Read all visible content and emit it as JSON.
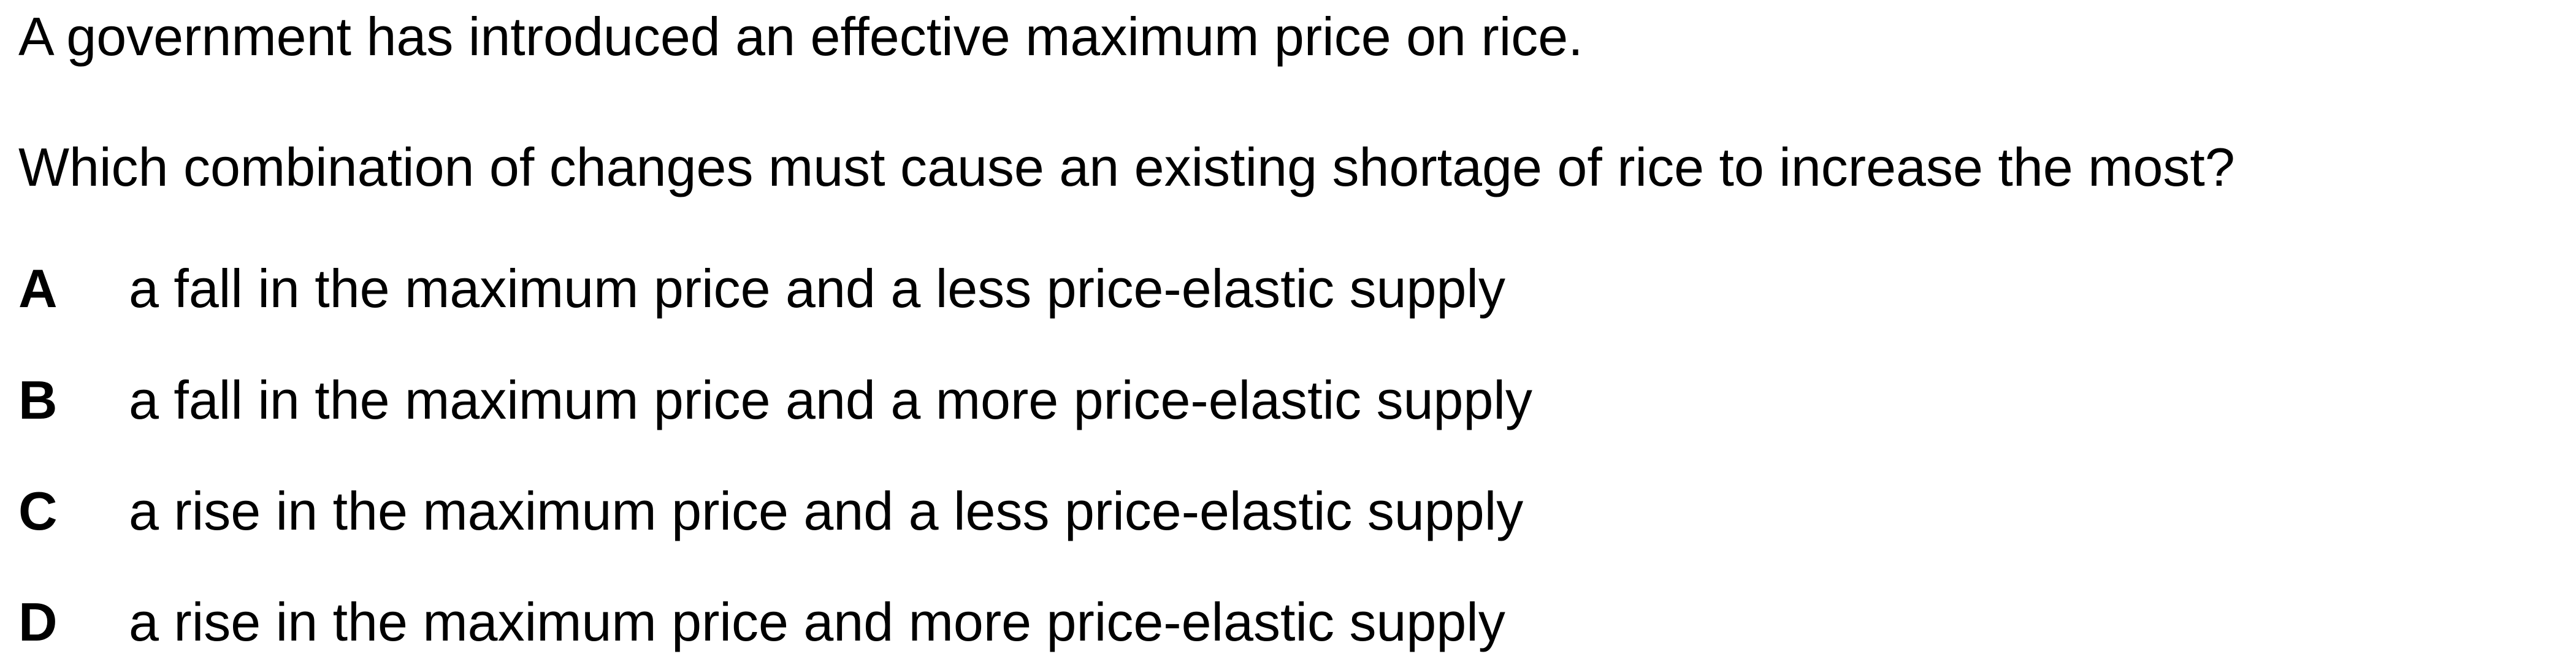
{
  "question": {
    "stem_line_1": "A government has introduced an effective maximum price on rice.",
    "stem_line_2": "Which combination of changes must cause an existing shortage of rice to increase the most?",
    "options": [
      {
        "letter": "A",
        "text": "a fall in the maximum price and a less price-elastic supply"
      },
      {
        "letter": "B",
        "text": "a fall in the maximum price and a more price-elastic supply"
      },
      {
        "letter": "C",
        "text": "a rise in the maximum price and a less price-elastic supply"
      },
      {
        "letter": "D",
        "text": "a rise in the maximum price and more price-elastic supply"
      }
    ]
  }
}
